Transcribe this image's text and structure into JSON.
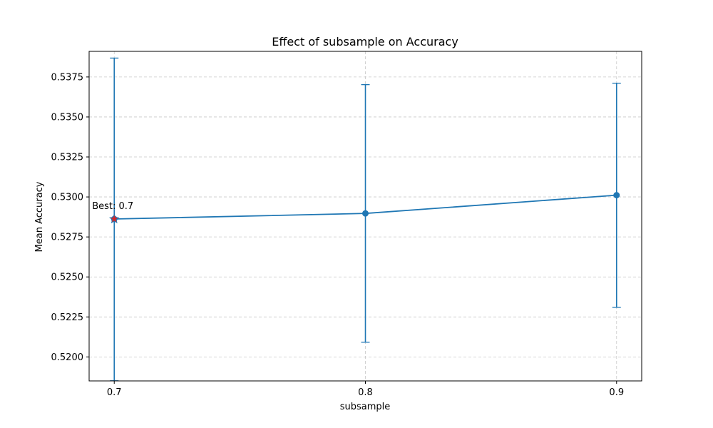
{
  "chart_data": {
    "type": "line",
    "title": "Effect of subsample on Accuracy",
    "xlabel": "subsample",
    "ylabel": "Mean Accuracy",
    "x": [
      0.7,
      0.8,
      0.9
    ],
    "x_tick_labels": [
      "0.7",
      "0.8",
      "0.9"
    ],
    "xlim": [
      0.69,
      0.91
    ],
    "ylim": [
      0.5185,
      0.5391
    ],
    "y_ticks": [
      0.52,
      0.5225,
      0.525,
      0.5275,
      0.53,
      0.5325,
      0.535,
      0.5375
    ],
    "y_tick_labels": [
      "0.5200",
      "0.5225",
      "0.5250",
      "0.5275",
      "0.5300",
      "0.5325",
      "0.5350",
      "0.5375"
    ],
    "grid": true,
    "series": [
      {
        "values": [
          0.52862,
          0.52897,
          0.53011
        ],
        "error_low": [
          0.51851,
          0.52092,
          0.5231
        ],
        "error_high": [
          0.53868,
          0.53702,
          0.53711
        ],
        "color": "#1f77b4"
      }
    ],
    "best_marker": {
      "x": 0.7,
      "y": 0.52862,
      "label": "Best: 0.7",
      "marker": "star",
      "color": "#d62728"
    }
  }
}
